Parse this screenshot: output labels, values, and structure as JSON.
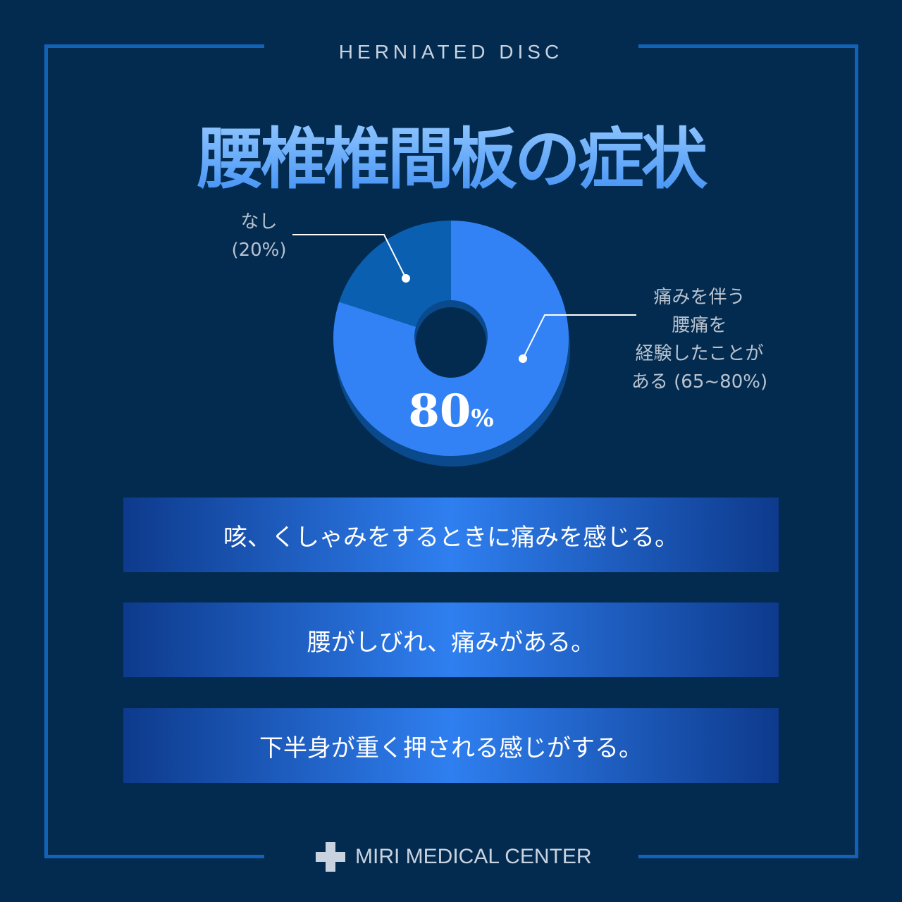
{
  "header": {
    "subtitle": "HERNIATED DISC",
    "title": "腰椎椎間板の症状"
  },
  "chart_data": {
    "type": "pie",
    "donut": true,
    "slices": [
      {
        "label": "痛みを伴う腰痛を経験したことがある (65~80%)",
        "value": 80,
        "color": "#3282f6"
      },
      {
        "label": "なし (20%)",
        "value": 20,
        "color": "#0a5fb0"
      }
    ],
    "center_value": "80",
    "center_unit": "%"
  },
  "labels": {
    "none": [
      "なし",
      "(20%)"
    ],
    "pain": [
      "痛みを伴う",
      "腰痛を",
      "経験したことが",
      "ある (65~80%)"
    ]
  },
  "symptoms": [
    "咳、くしゃみをするときに痛みを感じる。",
    "腰がしびれ、痛みがある。",
    "下半身が重く押される感じがする。"
  ],
  "footer": {
    "brand": "MIRI MEDICAL CENTER",
    "icon": "medical-cross-icon"
  }
}
